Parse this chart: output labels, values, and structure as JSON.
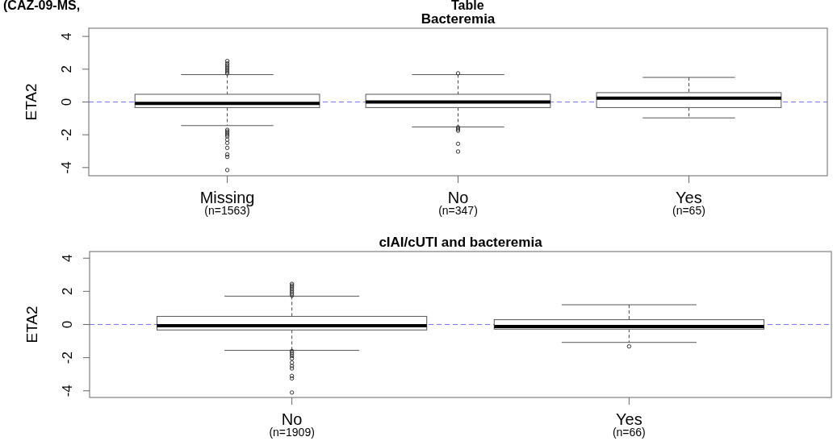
{
  "chart_data": [
    {
      "type": "box",
      "title": "Bacteremia",
      "ylabel": "ETA2",
      "annotations": [
        "(CAZ-09-MS,",
        "Table"
      ],
      "categories": [
        "Missing\n(n=1563)",
        "No\n(n=347)",
        "Yes\n(n=65)"
      ],
      "ylim": [
        -4.5,
        4.5
      ],
      "yticks": [
        -4,
        -2,
        0,
        2,
        4
      ],
      "grid": false,
      "ref_lines": [
        {
          "axis": "y",
          "value": 0,
          "color": "#7777ff",
          "line_style": "dashed"
        }
      ],
      "boxes": [
        {
          "low": -1.44,
          "q1": -0.34,
          "median": -0.08,
          "q3": 0.47,
          "high": 1.67,
          "outliers": [
            1.75,
            1.85,
            1.95,
            2.05,
            2.15,
            2.25,
            2.35,
            2.5,
            -1.7,
            -1.8,
            -1.9,
            -2.0,
            -2.1,
            -2.3,
            -2.5,
            -2.8,
            -3.2,
            -3.35,
            -4.15
          ]
        },
        {
          "low": -1.52,
          "q1": -0.34,
          "median": 0,
          "q3": 0.47,
          "high": 1.67,
          "outliers": [
            1.75,
            -1.55,
            -1.65,
            -1.75,
            -2.55,
            -3.02
          ]
        },
        {
          "low": -0.97,
          "q1": -0.34,
          "median": 0.23,
          "q3": 0.57,
          "high": 1.5
        }
      ]
    },
    {
      "type": "box",
      "title": "cIAI/cUTI and bacteremia",
      "ylabel": "ETA2",
      "categories": [
        "No\n(n=1909)",
        "Yes\n(n=66)"
      ],
      "ylim": [
        -4.4,
        4.4
      ],
      "yticks": [
        -4,
        -2,
        0,
        2,
        4
      ],
      "grid": false,
      "ref_lines": [
        {
          "axis": "y",
          "value": 0,
          "color": "#7777ff",
          "line_style": "dashed"
        }
      ],
      "boxes": [
        {
          "low": -1.56,
          "q1": -0.33,
          "median": -0.07,
          "q3": 0.49,
          "high": 1.71,
          "outliers": [
            1.75,
            1.85,
            1.95,
            2.05,
            2.15,
            2.25,
            2.35,
            2.45,
            -1.6,
            -1.7,
            -1.8,
            -1.9,
            -2.05,
            -2.3,
            -2.5,
            -2.65,
            -3.1,
            -3.25,
            -4.1
          ]
        },
        {
          "low": -1.08,
          "q1": -0.28,
          "median": -0.12,
          "q3": 0.29,
          "high": 1.19,
          "outliers": [
            -1.32
          ]
        }
      ]
    }
  ]
}
